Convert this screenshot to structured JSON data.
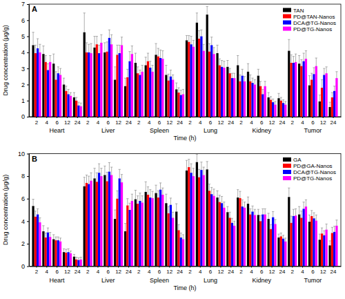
{
  "chart_data": [
    {
      "type": "bar",
      "panel_label": "A",
      "y_label": "Drug concentration (μg/g)",
      "x_label": "Time (h)",
      "legend": "top-right",
      "groups": [
        "Heart",
        "Liver",
        "Spleen",
        "Lung",
        "Kidney",
        "Tumor"
      ],
      "categories": [
        "2",
        "4",
        "6",
        "12",
        "24",
        "2",
        "4",
        "6",
        "12",
        "24",
        "2",
        "4",
        "6",
        "12",
        "24",
        "2",
        "4",
        "6",
        "12",
        "24",
        "2",
        "4",
        "6",
        "12",
        "24",
        "2",
        "4",
        "6",
        "12",
        "24"
      ],
      "ylim": [
        0,
        7
      ],
      "yticks": [
        0,
        1,
        2,
        3,
        4,
        5,
        6,
        7
      ],
      "series": [
        {
          "name": "TAN",
          "color": "#000000",
          "values": [
            4.45,
            3.9,
            3.3,
            2.0,
            1.2,
            5.25,
            4.3,
            4.0,
            2.3,
            1.9,
            3.35,
            3.2,
            3.85,
            2.6,
            1.7,
            4.75,
            5.85,
            6.35,
            3.95,
            3.1,
            3.2,
            2.8,
            2.55,
            1.2,
            1.15,
            4.1,
            3.3,
            1.95,
            0.95,
            0.6
          ],
          "errors": [
            0.8,
            0.5,
            0.6,
            0.4,
            0.3,
            1.2,
            0.7,
            0.6,
            0.8,
            0.5,
            0.6,
            0.5,
            0.7,
            0.6,
            0.4,
            0.3,
            0.6,
            0.5,
            0.5,
            0.4,
            0.6,
            0.5,
            0.4,
            0.3,
            0.3,
            0.7,
            0.5,
            0.6,
            0.4,
            0.3
          ]
        },
        {
          "name": "PD@TAN-Nanos",
          "color": "#ff0000",
          "values": [
            3.95,
            3.4,
            2.3,
            1.6,
            1.0,
            4.0,
            4.5,
            4.05,
            3.85,
            2.45,
            2.7,
            3.45,
            3.75,
            2.25,
            1.5,
            4.65,
            4.85,
            4.05,
            3.2,
            2.7,
            2.2,
            2.2,
            1.9,
            1.05,
            1.0,
            3.35,
            3.15,
            2.3,
            1.8,
            1.2
          ],
          "errors": [
            0.5,
            0.4,
            0.5,
            0.3,
            0.2,
            0.6,
            0.5,
            0.6,
            0.6,
            0.5,
            0.4,
            0.5,
            0.5,
            0.4,
            0.3,
            0.4,
            0.5,
            0.5,
            0.4,
            0.3,
            0.4,
            0.4,
            0.3,
            0.2,
            0.2,
            0.5,
            0.4,
            0.4,
            0.5,
            0.3
          ]
        },
        {
          "name": "DCA@TG-Nanos",
          "color": "#0000ff",
          "values": [
            4.25,
            2.9,
            2.7,
            1.4,
            0.7,
            4.0,
            3.95,
            4.9,
            3.95,
            3.45,
            2.6,
            3.05,
            3.65,
            2.5,
            1.35,
            4.5,
            5.0,
            4.45,
            3.1,
            2.4,
            2.55,
            2.1,
            1.4,
            0.9,
            0.85,
            3.35,
            3.45,
            2.65,
            2.6,
            1.6
          ],
          "errors": [
            0.6,
            0.4,
            0.4,
            0.3,
            0.2,
            0.5,
            0.5,
            0.5,
            0.5,
            0.6,
            0.3,
            0.4,
            0.5,
            0.4,
            0.3,
            0.5,
            0.4,
            0.5,
            0.4,
            0.3,
            0.4,
            0.3,
            0.3,
            0.2,
            0.2,
            0.4,
            0.5,
            0.4,
            0.4,
            0.3
          ]
        },
        {
          "name": "PD@TG-Nanos",
          "color": "#ff00ff",
          "values": [
            4.0,
            3.4,
            2.6,
            1.3,
            0.65,
            3.95,
            4.6,
            4.5,
            4.45,
            3.9,
            2.8,
            2.8,
            3.6,
            2.3,
            1.4,
            4.35,
            4.1,
            3.9,
            3.05,
            2.4,
            2.2,
            2.0,
            1.9,
            0.75,
            0.75,
            3.4,
            3.6,
            3.15,
            2.7,
            2.4
          ],
          "errors": [
            0.5,
            0.4,
            0.4,
            0.2,
            0.2,
            0.6,
            0.5,
            0.6,
            0.5,
            0.5,
            0.4,
            0.4,
            0.5,
            0.3,
            0.3,
            0.4,
            0.4,
            0.4,
            0.4,
            0.3,
            0.3,
            0.3,
            0.3,
            0.2,
            0.2,
            0.5,
            0.5,
            0.5,
            0.4,
            0.4
          ]
        }
      ]
    },
    {
      "type": "bar",
      "panel_label": "B",
      "y_label": "Drug concentration (μg/g)",
      "x_label": "Time (h)",
      "legend": "top-right",
      "groups": [
        "Heart",
        "Liver",
        "Spleen",
        "Lung",
        "Kidney",
        "Tumor"
      ],
      "categories": [
        "2",
        "4",
        "6",
        "12",
        "24",
        "2",
        "4",
        "6",
        "12",
        "24",
        "2",
        "4",
        "6",
        "12",
        "24",
        "2",
        "4",
        "6",
        "12",
        "24",
        "2",
        "4",
        "6",
        "12",
        "24",
        "2",
        "4",
        "6",
        "12",
        "24"
      ],
      "ylim": [
        0,
        10
      ],
      "yticks": [
        0,
        2,
        4,
        6,
        8,
        10
      ],
      "series": [
        {
          "name": "GA",
          "color": "#000000",
          "values": [
            5.35,
            3.1,
            2.4,
            1.25,
            0.85,
            7.1,
            7.8,
            8.1,
            4.2,
            3.1,
            5.95,
            6.6,
            6.5,
            5.6,
            4.85,
            8.5,
            9.25,
            8.6,
            6.1,
            4.8,
            6.1,
            5.55,
            4.55,
            4.2,
            2.55,
            6.15,
            4.6,
            3.95,
            2.35,
            1.85
          ],
          "errors": [
            0.6,
            0.5,
            0.4,
            0.3,
            0.2,
            0.8,
            0.9,
            0.8,
            0.8,
            0.7,
            0.8,
            0.9,
            0.7,
            0.8,
            0.7,
            0.9,
            0.7,
            0.7,
            0.6,
            0.5,
            0.7,
            0.6,
            0.5,
            0.5,
            0.3,
            0.8,
            0.7,
            0.6,
            0.5,
            0.4
          ]
        },
        {
          "name": "PD@GA-Nanos",
          "color": "#ff0000",
          "values": [
            4.4,
            2.55,
            2.3,
            1.2,
            0.6,
            7.4,
            7.5,
            7.55,
            6.0,
            5.4,
            5.55,
            6.35,
            6.1,
            4.7,
            3.2,
            8.8,
            7.9,
            6.7,
            5.7,
            4.3,
            6.05,
            4.6,
            4.0,
            3.3,
            2.65,
            3.85,
            4.3,
            4.45,
            2.9,
            2.95
          ],
          "errors": [
            0.5,
            0.4,
            0.3,
            0.3,
            0.2,
            0.7,
            0.8,
            0.8,
            0.7,
            0.6,
            0.7,
            0.7,
            0.6,
            0.6,
            0.5,
            0.7,
            0.7,
            0.6,
            0.6,
            0.5,
            0.6,
            0.5,
            0.5,
            0.4,
            0.3,
            0.6,
            0.6,
            0.5,
            0.5,
            0.5
          ]
        },
        {
          "name": "DCA@TG-Nanos",
          "color": "#0000ff",
          "values": [
            4.6,
            3.0,
            2.3,
            1.25,
            0.55,
            7.3,
            8.3,
            8.4,
            7.8,
            5.0,
            5.8,
            6.1,
            6.8,
            5.45,
            2.55,
            8.3,
            8.55,
            6.4,
            5.6,
            3.85,
            5.3,
            4.85,
            4.6,
            4.35,
            2.45,
            4.45,
            5.1,
            4.25,
            2.75,
            3.05
          ],
          "errors": [
            0.5,
            0.4,
            0.3,
            0.3,
            0.2,
            0.7,
            0.8,
            0.8,
            0.8,
            0.6,
            0.7,
            0.7,
            0.6,
            0.6,
            0.4,
            0.8,
            0.7,
            0.6,
            0.6,
            0.4,
            0.6,
            0.5,
            0.5,
            0.5,
            0.3,
            0.6,
            0.6,
            0.5,
            0.4,
            0.5
          ]
        },
        {
          "name": "PD@TG-Nanos",
          "color": "#ff00ff",
          "values": [
            3.9,
            2.6,
            2.2,
            1.15,
            0.6,
            7.6,
            8.0,
            8.1,
            7.45,
            5.8,
            5.65,
            6.05,
            6.35,
            4.3,
            2.4,
            8.0,
            8.1,
            6.25,
            5.2,
            3.6,
            5.2,
            4.55,
            4.6,
            3.75,
            2.2,
            4.5,
            5.3,
            4.05,
            3.25,
            3.6
          ],
          "errors": [
            0.4,
            0.4,
            0.3,
            0.2,
            0.2,
            0.7,
            0.7,
            0.7,
            0.7,
            0.6,
            0.6,
            0.6,
            0.6,
            0.5,
            0.4,
            0.7,
            0.7,
            0.6,
            0.5,
            0.4,
            0.5,
            0.5,
            0.5,
            0.4,
            0.3,
            0.6,
            0.6,
            0.5,
            0.5,
            0.5
          ]
        }
      ]
    }
  ]
}
